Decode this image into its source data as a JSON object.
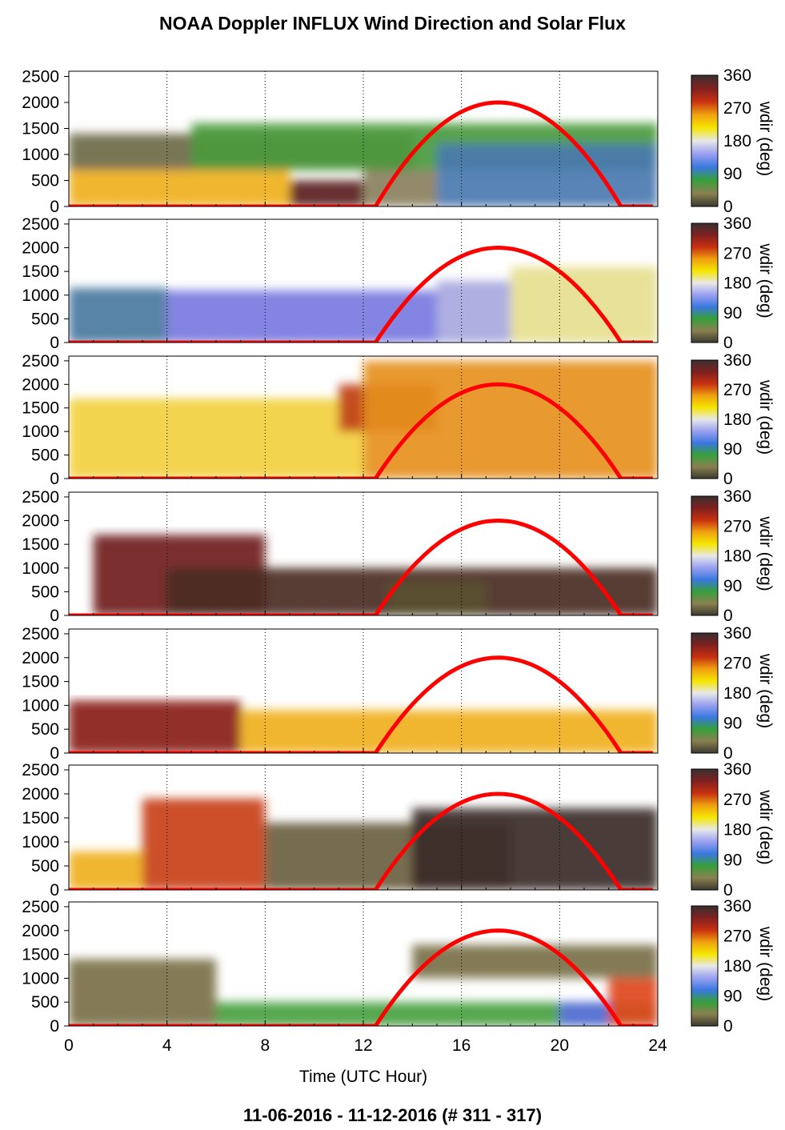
{
  "title": "NOAA Doppler INFLUX Wind Direction and Solar Flux",
  "footer": "11-06-2016 - 11-12-2016   (# 311 - 317)",
  "chart_data": {
    "type": "heatmap",
    "xlabel": "Time (UTC Hour)",
    "xlim": [
      0,
      24
    ],
    "xticks": [
      "0",
      "4",
      "8",
      "12",
      "16",
      "20",
      "24"
    ],
    "ylim": [
      0,
      2600
    ],
    "yticks": [
      "0",
      "500",
      "1000",
      "1500",
      "2000",
      "2500"
    ],
    "colorbar": {
      "label": "wdir (deg)",
      "ticks": [
        "0",
        "90",
        "180",
        "270",
        "360"
      ],
      "colors": [
        "#3b3a30",
        "#8a8050",
        "#36a03a",
        "#3a78e0",
        "#9aa0f0",
        "#e8e8e8",
        "#f5e600",
        "#f0a010",
        "#c83010",
        "#802020",
        "#3a3030"
      ]
    },
    "grid_x": [
      4,
      8,
      12,
      16,
      20,
      24
    ],
    "solar_curve": {
      "color": "#ff0000",
      "sunrise_hour": 12.5,
      "peak_hour": 17.5,
      "sunset_hour": 22.5,
      "peak_height": 2000
    },
    "panels": [
      {
        "day": "311",
        "regions": [
          {
            "label": "olive",
            "x0": 0,
            "x1": 14,
            "y0": 700,
            "y1": 1400,
            "color": "#6e6a48"
          },
          {
            "label": "green",
            "x0": 5,
            "x1": 24,
            "y0": 700,
            "y1": 1600,
            "color": "#4a9a3c"
          },
          {
            "label": "yellow-orange",
            "x0": 0,
            "x1": 9,
            "y0": 0,
            "y1": 700,
            "color": "#f0b020"
          },
          {
            "label": "dark-red",
            "x0": 9,
            "x1": 12,
            "y0": 0,
            "y1": 500,
            "color": "#5a2020"
          },
          {
            "label": "olive-low",
            "x0": 12,
            "x1": 15,
            "y0": 0,
            "y1": 700,
            "color": "#8a8060"
          },
          {
            "label": "blue-green",
            "x0": 15,
            "x1": 24,
            "y0": 0,
            "y1": 1200,
            "color": "#4a7ab0"
          }
        ]
      },
      {
        "day": "312",
        "regions": [
          {
            "label": "blue-green",
            "x0": 0,
            "x1": 4,
            "y0": 0,
            "y1": 1150,
            "color": "#4a7aa0"
          },
          {
            "label": "blue",
            "x0": 4,
            "x1": 15,
            "y0": 0,
            "y1": 1100,
            "color": "#7a7ae0"
          },
          {
            "label": "light-blue",
            "x0": 15,
            "x1": 18,
            "y0": 0,
            "y1": 1300,
            "color": "#a8a8e0"
          },
          {
            "label": "light-yellow",
            "x0": 18,
            "x1": 24,
            "y0": 0,
            "y1": 1600,
            "color": "#e6e090"
          }
        ]
      },
      {
        "day": "313",
        "regions": [
          {
            "label": "pale-yellow",
            "x0": 0,
            "x1": 12,
            "y0": 0,
            "y1": 1700,
            "color": "#f2d040"
          },
          {
            "label": "red",
            "x0": 11,
            "x1": 15,
            "y0": 1000,
            "y1": 2000,
            "color": "#c04018"
          },
          {
            "label": "orange",
            "x0": 12,
            "x1": 24,
            "y0": 0,
            "y1": 2500,
            "color": "#e69020"
          }
        ]
      },
      {
        "day": "314",
        "regions": [
          {
            "label": "dark-red",
            "x0": 1,
            "x1": 8,
            "y0": 0,
            "y1": 1700,
            "color": "#702020"
          },
          {
            "label": "dark-brown",
            "x0": 4,
            "x1": 24,
            "y0": 0,
            "y1": 1000,
            "color": "#4a2a22"
          },
          {
            "label": "olive",
            "x0": 13,
            "x1": 17,
            "y0": 0,
            "y1": 700,
            "color": "#5a5030"
          }
        ]
      },
      {
        "day": "315",
        "regions": [
          {
            "label": "dark-red",
            "x0": 0,
            "x1": 7,
            "y0": 0,
            "y1": 1100,
            "color": "#8a2018"
          },
          {
            "label": "orange-yellow",
            "x0": 7,
            "x1": 24,
            "y0": 0,
            "y1": 900,
            "color": "#f0b020"
          }
        ]
      },
      {
        "day": "316",
        "regions": [
          {
            "label": "yellow",
            "x0": 0,
            "x1": 3,
            "y0": 0,
            "y1": 800,
            "color": "#f0b020"
          },
          {
            "label": "red",
            "x0": 3,
            "x1": 8,
            "y0": 0,
            "y1": 1900,
            "color": "#c84018"
          },
          {
            "label": "olive",
            "x0": 8,
            "x1": 18,
            "y0": 0,
            "y1": 1400,
            "color": "#6a6040"
          },
          {
            "label": "dark",
            "x0": 14,
            "x1": 24,
            "y0": 0,
            "y1": 1700,
            "color": "#3a2a28"
          }
        ]
      },
      {
        "day": "317",
        "regions": [
          {
            "label": "olive",
            "x0": 0,
            "x1": 6,
            "y0": 0,
            "y1": 1400,
            "color": "#7a7048"
          },
          {
            "label": "green",
            "x0": 6,
            "x1": 24,
            "y0": 0,
            "y1": 500,
            "color": "#48a040"
          },
          {
            "label": "olive-high",
            "x0": 14,
            "x1": 24,
            "y0": 1000,
            "y1": 1700,
            "color": "#7a7048"
          },
          {
            "label": "blue",
            "x0": 20,
            "x1": 22,
            "y0": 0,
            "y1": 500,
            "color": "#5a70e0"
          },
          {
            "label": "red-orange",
            "x0": 22,
            "x1": 24,
            "y0": 0,
            "y1": 1000,
            "color": "#e04820"
          }
        ]
      }
    ]
  }
}
